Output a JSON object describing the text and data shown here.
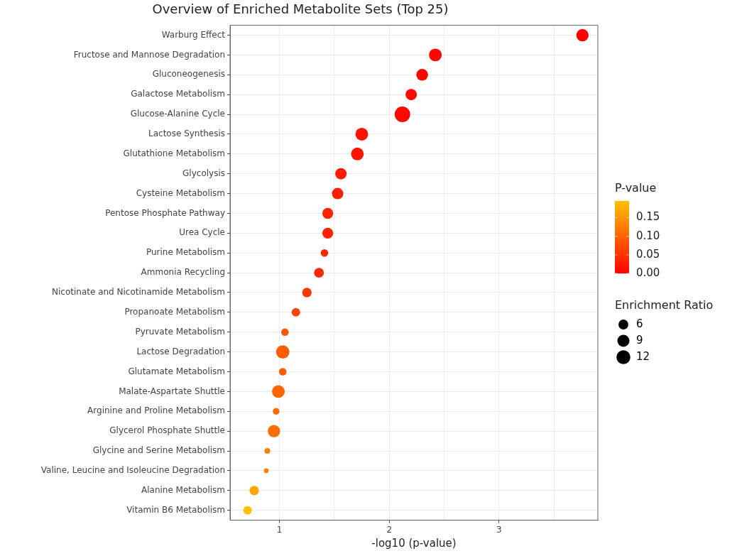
{
  "chart_data": {
    "type": "bubble",
    "title": "Overview of Enriched Metabolite Sets (Top 25)",
    "xlabel": "-log10 (p-value)",
    "clabel": "P-value",
    "legend_title": "Enrichment Ratio",
    "categories": [
      "Warburg Effect",
      "Fructose and Mannose Degradation",
      "Gluconeogenesis",
      "Galactose Metabolism",
      "Glucose-Alanine Cycle",
      "Lactose Synthesis",
      "Glutathione Metabolism",
      "Glycolysis",
      "Cysteine Metabolism",
      "Pentose Phosphate Pathway",
      "Urea Cycle",
      "Purine Metabolism",
      "Ammonia Recycling",
      "Nicotinate and Nicotinamide Metabolism",
      "Propanoate Metabolism",
      "Pyruvate Metabolism",
      "Lactose Degradation",
      "Glutamate Metabolism",
      "Malate-Aspartate Shuttle",
      "Arginine and Proline Metabolism",
      "Glycerol Phosphate Shuttle",
      "Glycine and Serine Metabolism",
      "Valine, Leucine and Isoleucine Degradation",
      "Alanine Metabolism",
      "Vitamin B6 Metabolism"
    ],
    "values": [
      3.76,
      2.42,
      2.3,
      2.2,
      2.12,
      1.75,
      1.71,
      1.56,
      1.53,
      1.44,
      1.44,
      1.41,
      1.36,
      1.25,
      1.15,
      1.05,
      1.03,
      1.03,
      0.99,
      0.97,
      0.95,
      0.89,
      0.88,
      0.77,
      0.71
    ],
    "sizes": [
      9.4,
      10,
      8.6,
      8,
      15,
      10,
      10,
      8,
      8,
      7.4,
      7.4,
      3.5,
      6,
      5.5,
      4.5,
      3.5,
      11,
      3.5,
      10,
      2.7,
      9.4,
      2,
      1.4,
      5.5,
      4.5
    ],
    "size_legend": [
      6,
      9,
      12
    ],
    "cvalues": [
      0.0002,
      0.004,
      0.005,
      0.006,
      0.008,
      0.018,
      0.02,
      0.028,
      0.03,
      0.036,
      0.036,
      0.039,
      0.044,
      0.056,
      0.071,
      0.089,
      0.093,
      0.093,
      0.102,
      0.107,
      0.112,
      0.129,
      0.132,
      0.17,
      0.195
    ],
    "clim": [
      0,
      0.195
    ],
    "cticks": [
      {
        "value": 0,
        "label": "0.00"
      },
      {
        "value": 0.05,
        "label": "0.05"
      },
      {
        "value": 0.1,
        "label": "0.10"
      },
      {
        "value": 0.15,
        "label": "0.15"
      }
    ],
    "xlim": [
      0.55,
      3.9
    ],
    "xticks": [
      1,
      {
        "value": 1.5,
        "label": null
      },
      2,
      {
        "value": 2.5,
        "label": null
      },
      3,
      {
        "value": 3.5,
        "label": null
      }
    ],
    "grid": true,
    "marker": "circle",
    "orientation": "horizontal"
  }
}
